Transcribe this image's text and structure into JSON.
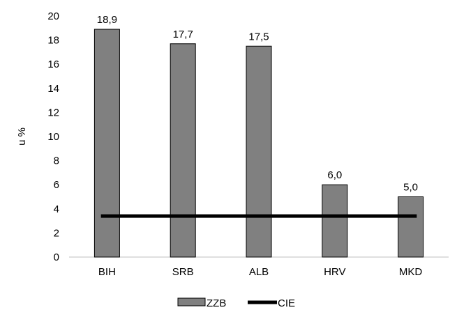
{
  "chart_data": {
    "type": "bar",
    "categories": [
      "BIH",
      "SRB",
      "ALB",
      "HRV",
      "MKD"
    ],
    "series": [
      {
        "name": "ZZB",
        "type": "bar",
        "values": [
          18.9,
          17.7,
          17.5,
          6.0,
          5.0
        ],
        "data_labels": [
          "18,9",
          "17,7",
          "17,5",
          "6,0",
          "5,0"
        ],
        "color": "#808080"
      },
      {
        "name": "CIE",
        "type": "line",
        "values": [
          3.4,
          3.4,
          3.4,
          3.4,
          3.4
        ],
        "color": "#000000"
      }
    ],
    "ylabel": "u %",
    "ylim": [
      0,
      20
    ],
    "yticks": [
      0,
      2,
      4,
      6,
      8,
      10,
      12,
      14,
      16,
      18,
      20
    ],
    "grid": false,
    "legend_position": "bottom-center"
  }
}
